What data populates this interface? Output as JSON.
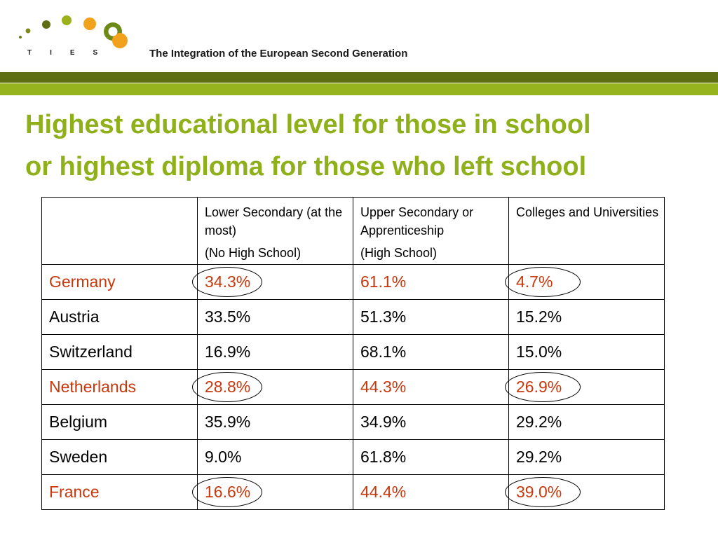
{
  "header": {
    "logo_text": "TIES",
    "tagline": "The Integration of the European Second Generation"
  },
  "title": {
    "line1": "Highest educational level for those in school",
    "line2": "or highest diploma for those who left school"
  },
  "table": {
    "columns": [
      {
        "label": "",
        "note": ""
      },
      {
        "label": "Lower Secondary (at the most)",
        "note": "(No High School)"
      },
      {
        "label": "Upper Secondary or Apprenticeship",
        "note": "(High School)"
      },
      {
        "label": "Colleges and Universities",
        "note": ""
      }
    ],
    "rows": [
      {
        "country": "Germany",
        "lower": "34.3%",
        "upper": "61.1%",
        "college": "4.7%",
        "highlight": true
      },
      {
        "country": "Austria",
        "lower": "33.5%",
        "upper": "51.3%",
        "college": "15.2%",
        "highlight": false
      },
      {
        "country": "Switzerland",
        "lower": "16.9%",
        "upper": "68.1%",
        "college": "15.0%",
        "highlight": false
      },
      {
        "country": "Netherlands",
        "lower": "28.8%",
        "upper": "44.3%",
        "college": "26.9%",
        "highlight": true
      },
      {
        "country": "Belgium",
        "lower": "35.9%",
        "upper": "34.9%",
        "college": "29.2%",
        "highlight": false
      },
      {
        "country": "Sweden",
        "lower": "9.0%",
        "upper": "61.8%",
        "college": "29.2%",
        "highlight": false
      },
      {
        "country": "France",
        "lower": "16.6%",
        "upper": "44.4%",
        "college": "39.0%",
        "highlight": true
      }
    ]
  },
  "colors": {
    "title_green": "#8fb01a",
    "band_dark": "#5e6e12",
    "band_light": "#95b41d",
    "highlight_red": "#c8380d"
  }
}
